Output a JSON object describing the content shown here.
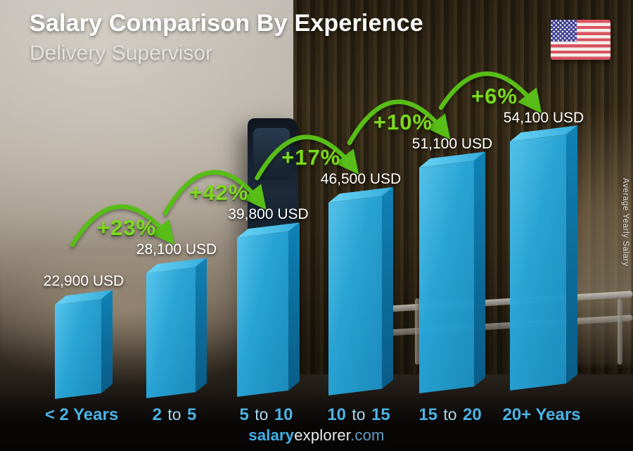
{
  "header": {
    "title": "Salary Comparison By Experience",
    "subtitle": "Delivery Supervisor"
  },
  "flag": {
    "label": "united-states-flag"
  },
  "axis": {
    "y_label": "Average Yearly Salary"
  },
  "footer": {
    "brand_primary": "salary",
    "brand_secondary": "explorer",
    "brand_domain": ".com"
  },
  "chart_data": {
    "type": "bar",
    "title": "Salary Comparison By Experience",
    "subtitle": "Delivery Supervisor",
    "unit": "USD",
    "categories": [
      "< 2 Years",
      "2 to 5",
      "5 to 10",
      "10 to 15",
      "15 to 20",
      "20+ Years"
    ],
    "values": [
      22900,
      28100,
      39800,
      46500,
      51100,
      54100
    ],
    "value_labels": [
      "22,900 USD",
      "28,100 USD",
      "39,800 USD",
      "46,500 USD",
      "51,100 USD",
      "54,100 USD"
    ],
    "pct_changes": [
      "+23%",
      "+42%",
      "+17%",
      "+10%",
      "+6%"
    ],
    "xlabel": "",
    "ylabel": "Average Yearly Salary",
    "grid": false,
    "legend": null,
    "colors": {
      "bar_front": "#29a7da",
      "bar_top": "#55c6ef",
      "bar_side": "#0c6b99",
      "increase_text": "#7ed81f",
      "arrow": "#58bd17",
      "value_text": "#ffffff",
      "category_text": "#4cb3e4"
    }
  }
}
